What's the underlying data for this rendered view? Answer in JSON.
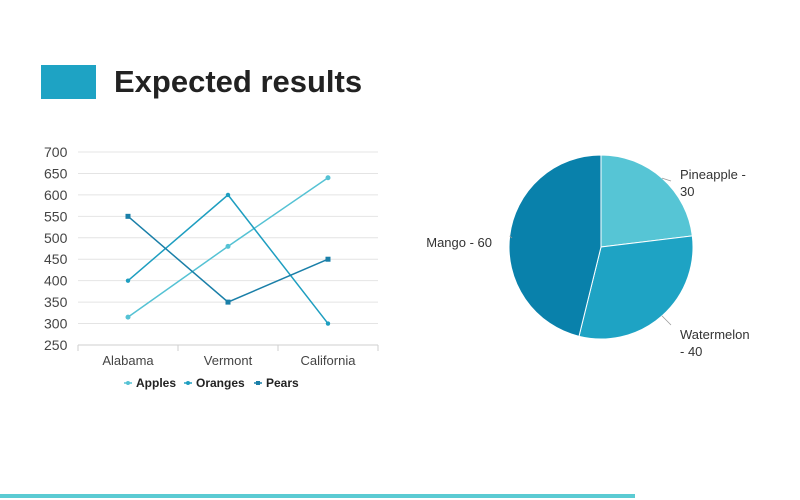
{
  "slide": {
    "title": "Expected results",
    "accent": "#1ea3c4",
    "footer_color": "#5bcbd3"
  },
  "chart_data": [
    {
      "type": "line",
      "categories": [
        "Alabama",
        "Vermont",
        "California"
      ],
      "series": [
        {
          "name": "Apples",
          "values": [
            315,
            480,
            640
          ],
          "color": "#55c2d4"
        },
        {
          "name": "Oranges",
          "values": [
            400,
            600,
            300
          ],
          "color": "#1e9ec0"
        },
        {
          "name": "Pears",
          "values": [
            550,
            350,
            450
          ],
          "color": "#1a7fa8"
        }
      ],
      "yticks": [
        250,
        300,
        350,
        400,
        450,
        500,
        550,
        600,
        650,
        700
      ],
      "ylim": [
        250,
        700
      ],
      "grid": true,
      "legend": "bottom"
    },
    {
      "type": "pie",
      "slices": [
        {
          "label_lines": [
            "Pineapple -",
            "30"
          ],
          "value": 30,
          "color": "#56c5d5"
        },
        {
          "label_lines": [
            "Watermelon",
            "- 40"
          ],
          "value": 40,
          "color": "#1ea3c4"
        },
        {
          "label_lines": [
            "Mango - 60"
          ],
          "value": 60,
          "color": "#0981ab"
        }
      ]
    }
  ]
}
